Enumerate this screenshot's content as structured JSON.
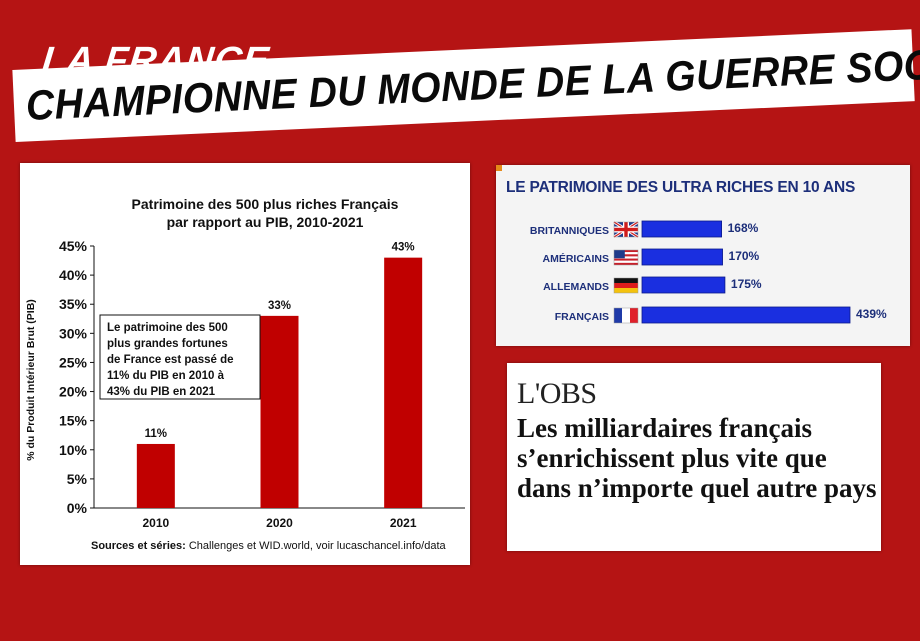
{
  "header": {
    "line1": "LA FRANCE",
    "line2": "CHAMPIONNE DU MONDE DE LA GUERRE SOCIALE"
  },
  "chart_main": {
    "title_line1": "Patrimoine des 500 plus riches Français",
    "title_line2": "par rapport au PIB, 2010-2021",
    "ylabel": "% du Produit Intérieur Brut (PIB)",
    "annotation": [
      "Le patrimoine des 500",
      "plus grandes fortunes",
      "de France est passé de",
      "11% du PIB en 2010 à",
      "43% du PIB en 2021"
    ],
    "source_bold": "Sources et séries:",
    "source_rest": " Challenges et WID.world, voir lucaschancel.info/data",
    "bar_color": "#c00000"
  },
  "chart_ultra": {
    "title": "LE PATRIMOINE DES ULTRA RICHES EN 10 ANS",
    "bar_color": "#1a2fe0"
  },
  "obs": {
    "logo": "L'OBS",
    "headline": "Les milliardaires français s’enrichissent plus vite que dans n’importe quel autre pays"
  },
  "chart_data": [
    {
      "type": "bar",
      "title": "Patrimoine des 500 plus riches Français par rapport au PIB, 2010-2021",
      "categories": [
        "2010",
        "2020",
        "2021"
      ],
      "values": [
        11,
        33,
        43
      ],
      "data_labels": [
        "11%",
        "33%",
        "43%"
      ],
      "ylabel": "% du Produit Intérieur Brut (PIB)",
      "ylim": [
        0,
        45
      ],
      "yticks": [
        "0%",
        "5%",
        "10%",
        "15%",
        "20%",
        "25%",
        "30%",
        "35%",
        "40%",
        "45%"
      ],
      "grid": false
    },
    {
      "type": "bar",
      "orientation": "horizontal",
      "title": "LE PATRIMOINE DES ULTRA RICHES EN 10 ANS",
      "categories": [
        "BRITANNIQUES",
        "AMÉRICAINS",
        "ALLEMANDS",
        "FRANÇAIS"
      ],
      "flags": [
        "uk-flag-icon",
        "us-flag-icon",
        "germany-flag-icon",
        "france-flag-icon"
      ],
      "values": [
        168,
        170,
        175,
        439
      ],
      "data_labels": [
        "168%",
        "170%",
        "175%",
        "439%"
      ]
    }
  ]
}
